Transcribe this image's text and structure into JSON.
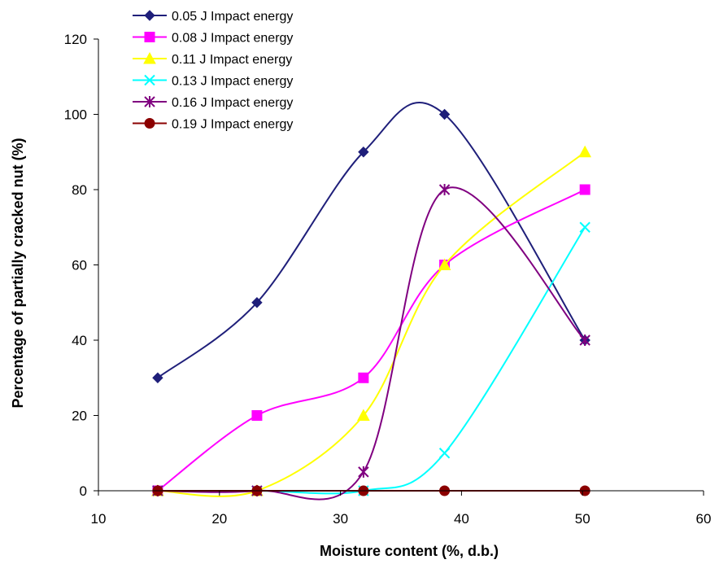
{
  "chart_data": {
    "type": "line",
    "title": "",
    "xlabel": "Moisture content (%, d.b.)",
    "ylabel": "Percentage of partially  cracked nut (%)",
    "xlim": [
      10,
      60
    ],
    "ylim": [
      0,
      120
    ],
    "xticks": [
      "10",
      "20",
      "30",
      "40",
      "50",
      "60"
    ],
    "yticks": [
      "0",
      "20",
      "40",
      "60",
      "80",
      "100",
      "120"
    ],
    "grid": false,
    "legend_position": "top-left",
    "smooth": true,
    "x": [
      14.9,
      23.1,
      31.9,
      38.6,
      50.2
    ],
    "series": [
      {
        "name": "0.05 J Impact energy",
        "color": "#1f1f7a",
        "marker": "diamond",
        "values": [
          30,
          50,
          90,
          100,
          40
        ]
      },
      {
        "name": "0.08 J Impact energy",
        "color": "#ff00ff",
        "marker": "square",
        "values": [
          0,
          20,
          30,
          60,
          80
        ]
      },
      {
        "name": "0.11 J Impact energy",
        "color": "#ffff00",
        "marker": "triangle",
        "values": [
          0,
          0,
          20,
          60,
          90
        ]
      },
      {
        "name": "0.13  J Impact energy",
        "color": "#00ffff",
        "marker": "x",
        "values": [
          0,
          0,
          0,
          10,
          70
        ]
      },
      {
        "name": "0.16  J Impact energy",
        "color": "#800080",
        "marker": "star",
        "values": [
          0,
          0,
          5,
          80,
          40
        ]
      },
      {
        "name": "0.19  J Impact energy",
        "color": "#8b0000",
        "marker": "circle",
        "values": [
          0,
          0,
          0,
          0,
          0
        ]
      }
    ]
  }
}
